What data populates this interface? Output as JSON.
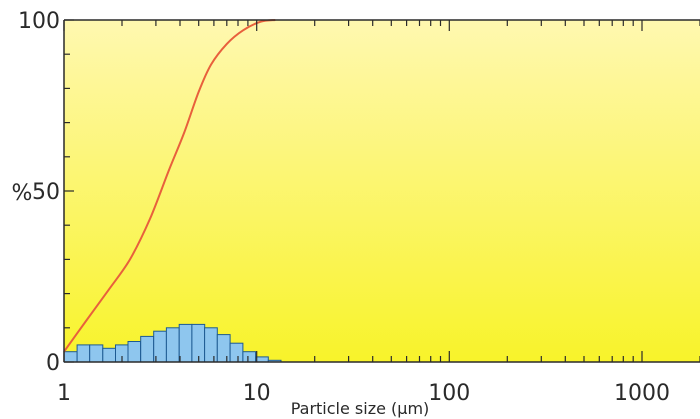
{
  "chart_data": {
    "type": "bar",
    "xlabel": "Particle size (µm)",
    "ylabel": "%",
    "x_scale": "log",
    "xlim": [
      1,
      2000
    ],
    "ylim": [
      0,
      100
    ],
    "x_ticks": [
      {
        "value": 1,
        "label": "1"
      },
      {
        "value": 10,
        "label": "10"
      },
      {
        "value": 100,
        "label": "100"
      },
      {
        "value": 1000,
        "label": "1000"
      }
    ],
    "y_ticks": [
      {
        "value": 0,
        "label": "0"
      },
      {
        "value": 50,
        "label": "50"
      },
      {
        "value": 100,
        "label": "100"
      }
    ],
    "grid": false,
    "series": [
      {
        "kind": "histogram",
        "color": "#8ec6ee",
        "edge_color": "#1d5a92",
        "bins": [
          {
            "x0": 1.0,
            "x1": 1.17,
            "value": 3.0
          },
          {
            "x0": 1.17,
            "x1": 1.36,
            "value": 5.0
          },
          {
            "x0": 1.36,
            "x1": 1.59,
            "value": 5.0
          },
          {
            "x0": 1.59,
            "x1": 1.85,
            "value": 4.0
          },
          {
            "x0": 1.85,
            "x1": 2.15,
            "value": 5.0
          },
          {
            "x0": 2.15,
            "x1": 2.5,
            "value": 6.0
          },
          {
            "x0": 2.5,
            "x1": 2.92,
            "value": 7.5
          },
          {
            "x0": 2.92,
            "x1": 3.4,
            "value": 9.0
          },
          {
            "x0": 3.4,
            "x1": 3.96,
            "value": 10.0
          },
          {
            "x0": 3.96,
            "x1": 4.61,
            "value": 11.0
          },
          {
            "x0": 4.61,
            "x1": 5.37,
            "value": 11.0
          },
          {
            "x0": 5.37,
            "x1": 6.25,
            "value": 10.0
          },
          {
            "x0": 6.25,
            "x1": 7.28,
            "value": 8.0
          },
          {
            "x0": 7.28,
            "x1": 8.48,
            "value": 5.5
          },
          {
            "x0": 8.48,
            "x1": 9.87,
            "value": 3.0
          },
          {
            "x0": 9.87,
            "x1": 11.49,
            "value": 1.5
          },
          {
            "x0": 11.49,
            "x1": 13.38,
            "value": 0.5
          }
        ]
      },
      {
        "kind": "line",
        "color": "#e8603c",
        "points": [
          {
            "x": 1.0,
            "y": 3
          },
          {
            "x": 1.3,
            "y": 12
          },
          {
            "x": 1.7,
            "y": 21
          },
          {
            "x": 2.2,
            "y": 30
          },
          {
            "x": 2.8,
            "y": 42
          },
          {
            "x": 3.5,
            "y": 56
          },
          {
            "x": 4.2,
            "y": 67
          },
          {
            "x": 5.0,
            "y": 79
          },
          {
            "x": 5.8,
            "y": 87
          },
          {
            "x": 7.0,
            "y": 93
          },
          {
            "x": 8.5,
            "y": 97
          },
          {
            "x": 10.5,
            "y": 99.5
          },
          {
            "x": 12.5,
            "y": 100
          }
        ]
      }
    ],
    "colors": {
      "plot_bg_top": "#fff8b0",
      "plot_bg_bottom": "#f8f32a",
      "axis": "#2a2a2a"
    }
  }
}
